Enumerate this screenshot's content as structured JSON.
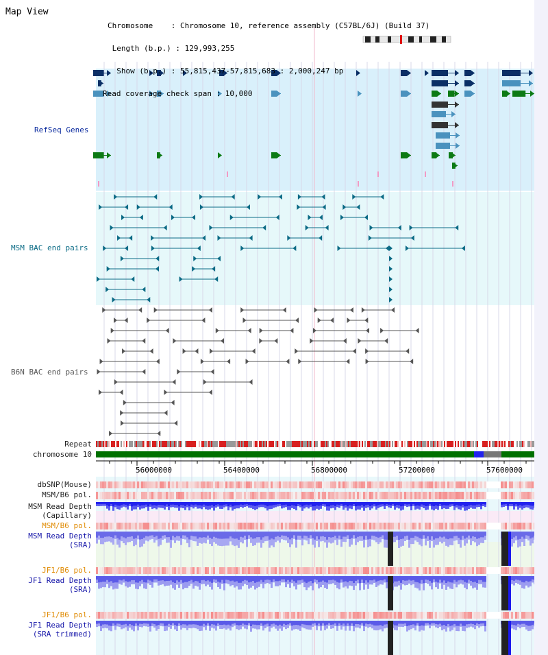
{
  "page": {
    "title": "Map View"
  },
  "header": {
    "chromosome_line": "Chromosome    : Chromosome 10, reference assembly (C57BL/6J) (Build 37)",
    "length_line": " Length (b.p.) : 129,993,255",
    "show_line": "  Show (b.p.) : 55,815,437-57,815,683 : 2,000,247 bp",
    "coverage_line": "Read coverage check span : 10,000"
  },
  "tracks": {
    "refseq": "RefSeq Genes",
    "msm_bac": "MSM BAC end pairs",
    "b6n_bac": "B6N BAC end pairs",
    "repeat": "Repeat",
    "chromosome": "chromosome 10",
    "dbsnp": "dbSNP(Mouse)",
    "msm_b6_pol": "MSM/B6 pol.",
    "msm_depth_cap_1": "MSM Read Depth",
    "msm_depth_cap_2": "(Capillary)",
    "msm_b6_pol_2": "MSM/B6 pol.",
    "msm_depth_sra_1": "MSM Read Depth",
    "msm_depth_sra_2": "(SRA)",
    "jf1_pol": "JF1/B6 pol.",
    "jf1_depth_sra_1": "JF1 Read Depth",
    "jf1_depth_sra_2": "(SRA)",
    "jf1_pol_2": "JF1/B6 pol.",
    "jf1_trim_1": "JF1 Read Depth",
    "jf1_trim_2": "(SRA trimmed)"
  },
  "axis": {
    "ticks": [
      "56000000",
      "56400000",
      "56800000",
      "57200000",
      "57600000"
    ]
  },
  "colors": {
    "refseq_bg": "#d9f0fb",
    "bac_bg": "#e6f8fa",
    "gene_navy": "#0b2f66",
    "gene_blue": "#4a92be",
    "gene_green": "#0c7a14",
    "bac_line": "#0b6a85",
    "b6n_line": "#555555",
    "chromosome_green": "#007000",
    "depth_blue": "#2222ee"
  }
}
